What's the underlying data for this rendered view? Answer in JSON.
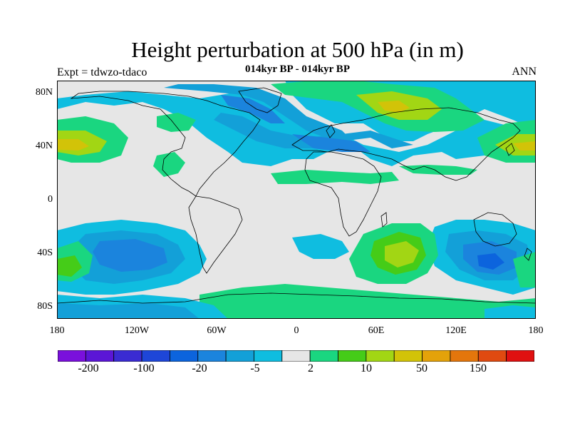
{
  "header": {
    "title": "Height perturbation at 500 hPa (in m)",
    "subtitle": "014kyr BP - 014kyr BP",
    "left_label": "Expt = tdwzo-tdaco",
    "right_label": "ANN"
  },
  "axes": {
    "lat_labels": [
      "80N",
      "40N",
      "0",
      "40S",
      "80S"
    ],
    "lon_labels": [
      "180",
      "120W",
      "60W",
      "0",
      "60E",
      "120E",
      "180"
    ]
  },
  "colorbar": {
    "colors": [
      "#7a10dc",
      "#5b16d6",
      "#3a2bd2",
      "#1e46d8",
      "#0c64dd",
      "#1b84dd",
      "#13a0d8",
      "#0fbde0",
      "#e6e6e6",
      "#1ad680",
      "#45cc18",
      "#a2d614",
      "#d2c308",
      "#e4a20a",
      "#e4760c",
      "#e04a10",
      "#e01010"
    ],
    "labels": [
      "-200",
      "-100",
      "-20",
      "-5",
      "2",
      "10",
      "50",
      "150"
    ]
  },
  "map": {
    "background": "#e6e6e6",
    "coastline_color": "#000000"
  }
}
